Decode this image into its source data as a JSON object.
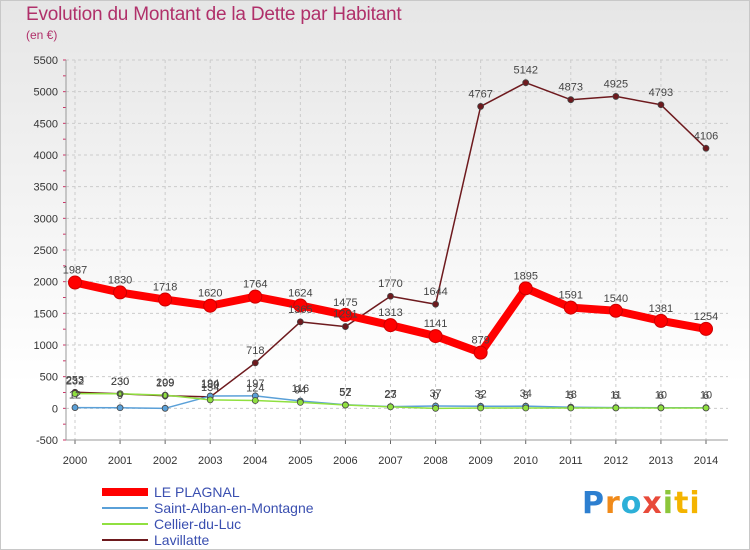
{
  "chart_data": {
    "type": "line",
    "title": "Evolution du Montant de la Dette par Habitant",
    "subtitle": "(en €)",
    "categories": [
      "2000",
      "2001",
      "2002",
      "2003",
      "2004",
      "2005",
      "2006",
      "2007",
      "2008",
      "2009",
      "2010",
      "2011",
      "2012",
      "2013",
      "2014"
    ],
    "ylim": [
      -500,
      5500
    ],
    "yticks": [
      -500,
      0,
      500,
      1000,
      1500,
      2000,
      2500,
      3000,
      3500,
      4000,
      4500,
      5000,
      5500
    ],
    "grid": true,
    "legend_position": "bottom-left",
    "series": [
      {
        "name": "LE PLAGNAL",
        "color": "#ff0000",
        "values": [
          1987,
          1830,
          1718,
          1620,
          1764,
          1624,
          1475,
          1313,
          1141,
          879,
          1895,
          1591,
          1540,
          1381,
          1254
        ]
      },
      {
        "name": "Saint-Alban-en-Montagne",
        "color": "#5aa0d8",
        "values": [
          12,
          9,
          0,
          194,
          197,
          116,
          57,
          27,
          37,
          32,
          34,
          18,
          11,
          10,
          10
        ]
      },
      {
        "name": "Cellier-du-Luc",
        "color": "#90e040",
        "values": [
          232,
          230,
          209,
          134,
          124,
          94,
          52,
          23,
          0,
          5,
          5,
          5,
          6,
          6,
          6
        ]
      },
      {
        "name": "Lavillatte",
        "color": "#6e1a1e",
        "values": [
          253,
          230,
          199,
          180,
          718,
          1365,
          1291,
          1770,
          1644,
          4767,
          5142,
          4873,
          4925,
          4793,
          4106
        ]
      }
    ]
  },
  "logo": [
    "P",
    "r",
    "o",
    "x",
    "i",
    "ti"
  ]
}
